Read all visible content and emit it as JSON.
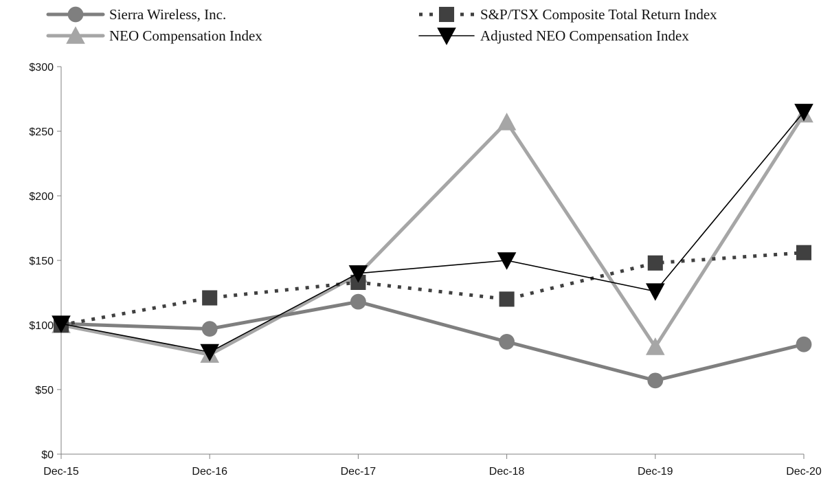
{
  "chart_data": {
    "type": "line",
    "categories": [
      "Dec-15",
      "Dec-16",
      "Dec-17",
      "Dec-18",
      "Dec-19",
      "Dec-20"
    ],
    "ylim": [
      0,
      300
    ],
    "yticks": [
      0,
      50,
      100,
      150,
      200,
      250,
      300
    ],
    "ytick_labels": [
      "$0",
      "$50",
      "$100",
      "$150",
      "$200",
      "$250",
      "$300"
    ],
    "title": "",
    "xlabel": "",
    "ylabel": "",
    "grid": false,
    "legend_position": "top",
    "series": [
      {
        "name": "Sierra Wireless, Inc.",
        "values": [
          101,
          97,
          118,
          87,
          57,
          85
        ],
        "color": "#7f7f7f",
        "marker": "circle",
        "line_style": "solid-thick"
      },
      {
        "name": "S&P/TSX Composite Total Return Index",
        "values": [
          100,
          121,
          133,
          120,
          148,
          156
        ],
        "color": "#404040",
        "marker": "square",
        "line_style": "dotted"
      },
      {
        "name": "NEO Compensation Index",
        "values": [
          100,
          77,
          139,
          257,
          83,
          263
        ],
        "color": "#a6a6a6",
        "marker": "triangle-up",
        "line_style": "solid-thick"
      },
      {
        "name": "Adjusted NEO Compensation Index",
        "values": [
          101,
          79,
          140,
          150,
          126,
          265
        ],
        "color": "#000000",
        "marker": "triangle-down",
        "line_style": "solid-thin"
      }
    ]
  }
}
